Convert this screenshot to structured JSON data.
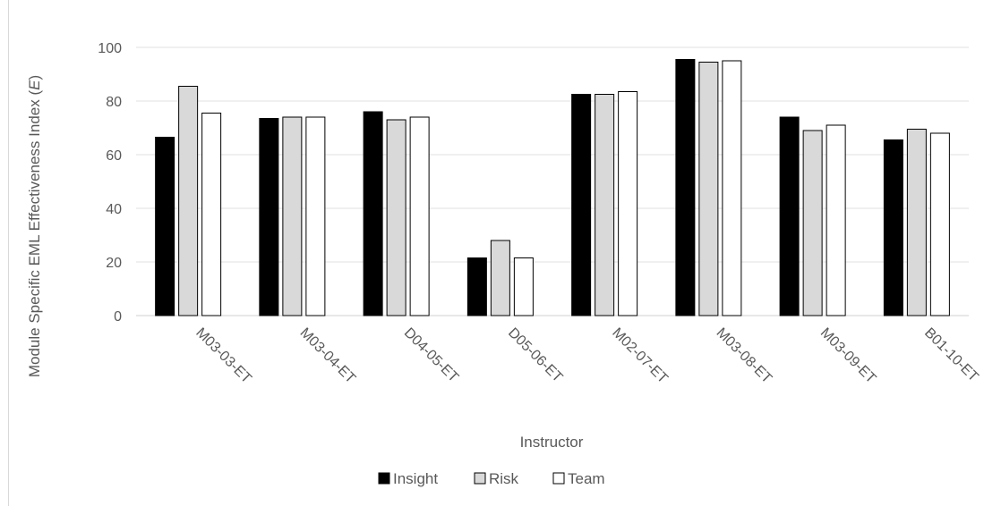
{
  "chart_data": {
    "type": "bar",
    "xlabel": "Instructor",
    "ylabel_main": "Module Specific EML Effectiveness Index (",
    "ylabel_symbol": "E",
    "ylabel_end": ")",
    "ylim": [
      0,
      100
    ],
    "yticks": [
      "0",
      "20",
      "40",
      "60",
      "80",
      "100"
    ],
    "grid": true,
    "legend_position": "bottom",
    "categories": [
      "M03-03-ET",
      "M03-04-ET",
      "D04-05-ET",
      "D05-06-ET",
      "M02-07-ET",
      "M03-08-ET",
      "M03-09-ET",
      "B01-10-ET"
    ],
    "series": [
      {
        "name": "Insight",
        "color": "#000000",
        "values": [
          66.5,
          73.5,
          76,
          21.5,
          82.5,
          95.5,
          74,
          65.5
        ]
      },
      {
        "name": "Risk",
        "color": "#d9d9d9",
        "values": [
          85.5,
          74,
          73,
          28,
          82.5,
          94.5,
          69,
          69.5
        ]
      },
      {
        "name": "Team",
        "color": "#ffffff",
        "values": [
          75.5,
          74,
          74,
          21.5,
          83.5,
          95,
          71,
          68
        ]
      }
    ]
  }
}
